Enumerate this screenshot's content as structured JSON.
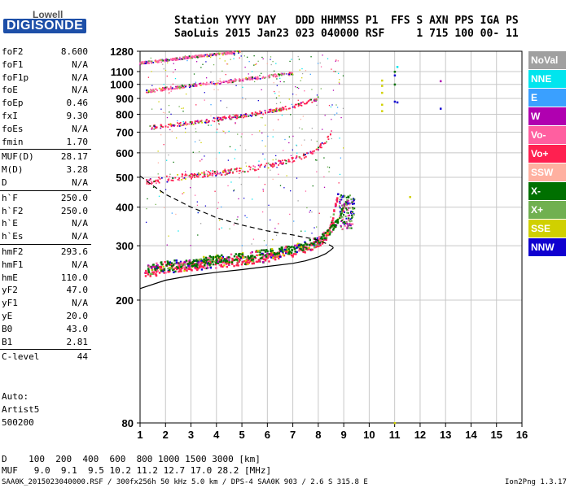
{
  "logo": {
    "top": "Lowell",
    "bottom": "DIGISONDE"
  },
  "header": {
    "line1": "Station YYYY DAY   DDD HHMMSS P1  FFS S AXN PPS IGA PS",
    "line2": "SaoLuis 2015 Jan23 023 040000 RSF     1 715 100 00- 11"
  },
  "params": [
    {
      "name": "foF2",
      "value": "8.600"
    },
    {
      "name": "foF1",
      "value": "N/A"
    },
    {
      "name": "foF1p",
      "value": "N/A"
    },
    {
      "name": "foE",
      "value": "N/A"
    },
    {
      "name": "foEp",
      "value": "0.46"
    },
    {
      "name": "fxI",
      "value": "9.30"
    },
    {
      "name": "foEs",
      "value": "N/A"
    },
    {
      "name": "fmin",
      "value": "1.70"
    },
    {
      "name": "MUF(D)",
      "value": "28.17",
      "sep": true
    },
    {
      "name": "M(D)",
      "value": "3.28"
    },
    {
      "name": "D",
      "value": "N/A"
    },
    {
      "name": "h`F",
      "value": "250.0",
      "sep": true
    },
    {
      "name": "h`F2",
      "value": "250.0"
    },
    {
      "name": "h`E",
      "value": "N/A"
    },
    {
      "name": "h`Es",
      "value": "N/A"
    },
    {
      "name": "hmF2",
      "value": "293.6",
      "sep": true
    },
    {
      "name": "hmF1",
      "value": "N/A"
    },
    {
      "name": "hmE",
      "value": "110.0"
    },
    {
      "name": "yF2",
      "value": "47.0"
    },
    {
      "name": "yF1",
      "value": "N/A"
    },
    {
      "name": "yE",
      "value": "20.0"
    },
    {
      "name": "B0",
      "value": "43.0"
    },
    {
      "name": "B1",
      "value": "2.81"
    },
    {
      "name": "C-level",
      "value": "44",
      "sep": true
    }
  ],
  "auto": {
    "label": "Auto:",
    "artist": "Artist5",
    "version": "500200"
  },
  "bottom": {
    "line1": "D    100  200  400  600  800 1000 1500 3000 [km]",
    "line2": "MUF   9.0  9.1  9.5 10.2 11.2 12.7 17.0 28.2 [MHz]"
  },
  "footer": {
    "left": "SAA0K_2015023040000.RSF / 300fx256h 50 kHz 5.0 km / DPS-4 SAA0K 903 / 2.6 S 315.8 E",
    "right": "Ion2Png 1.3.17"
  },
  "legend": [
    {
      "label": "NoVal",
      "color": "#a0a0a0"
    },
    {
      "label": "NNE",
      "color": "#00e5ee"
    },
    {
      "label": "E",
      "color": "#3aa0ff"
    },
    {
      "label": "W",
      "color": "#b000b0"
    },
    {
      "label": "Vo-",
      "color": "#ff5fa0"
    },
    {
      "label": "Vo+",
      "color": "#ff2050"
    },
    {
      "label": "SSW",
      "color": "#ffb0a0"
    },
    {
      "label": "X-",
      "color": "#007000"
    },
    {
      "label": "X+",
      "color": "#70b050"
    },
    {
      "label": "SSE",
      "color": "#d0d000"
    },
    {
      "label": "NNW",
      "color": "#1000d0"
    }
  ],
  "chart_data": {
    "type": "scatter",
    "xlabel": "",
    "ylabel": "",
    "xlim": [
      1,
      16
    ],
    "ylim": [
      80,
      1280
    ],
    "y_scale": "log",
    "x_ticks": [
      1,
      2,
      3,
      4,
      5,
      6,
      7,
      8,
      9,
      10,
      11,
      12,
      13,
      14,
      15,
      16
    ],
    "y_ticks": [
      80,
      200,
      300,
      400,
      500,
      600,
      700,
      800,
      900,
      1000,
      1100,
      1280
    ],
    "grid": true,
    "traces": [
      {
        "name": "O-trace F2",
        "color": "#ff2050",
        "x": [
          1.2,
          2,
          3,
          4,
          5,
          6,
          7,
          7.5,
          8,
          8.3,
          8.5,
          8.6,
          8.7,
          8.8
        ],
        "y": [
          245,
          252,
          258,
          263,
          268,
          275,
          285,
          293,
          305,
          320,
          345,
          375,
          410,
          440
        ]
      },
      {
        "name": "X-trace F2",
        "color": "#007000",
        "x": [
          1.3,
          2,
          3,
          4,
          5,
          6,
          7,
          7.5,
          8,
          8.4,
          8.7,
          8.9,
          9.1,
          9.2
        ],
        "y": [
          250,
          258,
          265,
          270,
          275,
          283,
          293,
          300,
          312,
          330,
          355,
          385,
          410,
          430
        ]
      },
      {
        "name": "2-hop O",
        "color": "#ff2050",
        "x": [
          1.2,
          2,
          3,
          4,
          5,
          6,
          7,
          7.5,
          8,
          8.3,
          8.5,
          8.6
        ],
        "y": [
          480,
          493,
          505,
          515,
          528,
          545,
          570,
          590,
          620,
          655,
          690,
          720
        ]
      },
      {
        "name": "3-hop O",
        "color": "#ff2050",
        "x": [
          1.2,
          2,
          3,
          4,
          5,
          6,
          7,
          7.5,
          8
        ],
        "y": [
          718,
          735,
          750,
          770,
          790,
          815,
          845,
          870,
          900
        ]
      },
      {
        "name": "4-hop",
        "color": "#ff5fa0",
        "x": [
          1.2,
          2,
          3,
          4,
          5,
          6,
          7
        ],
        "y": [
          945,
          968,
          990,
          1010,
          1035,
          1060,
          1085
        ]
      },
      {
        "name": "5-hop",
        "color": "#ff5fa0",
        "x": [
          1,
          2,
          3,
          4,
          5
        ],
        "y": [
          1170,
          1195,
          1225,
          1250,
          1275
        ]
      }
    ],
    "profile": {
      "x": [
        1,
        2,
        3,
        4,
        5,
        6,
        7,
        7.5,
        8,
        8.3,
        8.5,
        8.6
      ],
      "y": [
        218,
        232,
        240,
        246,
        251,
        257,
        263,
        268,
        276,
        283,
        291,
        296
      ]
    },
    "dashed_profile": {
      "x": [
        1,
        1.5,
        2,
        2.5,
        3,
        3.5,
        4,
        5,
        6,
        7,
        8,
        8.5,
        8.6
      ],
      "y": [
        505,
        470,
        440,
        420,
        400,
        385,
        370,
        350,
        335,
        325,
        313,
        300,
        296
      ]
    },
    "isolated_points": [
      {
        "x": 10.5,
        "y": 1030,
        "color": "#d0d000"
      },
      {
        "x": 10.5,
        "y": 990,
        "color": "#d0d000"
      },
      {
        "x": 10.5,
        "y": 940,
        "color": "#d0d000"
      },
      {
        "x": 10.5,
        "y": 860,
        "color": "#d0d000"
      },
      {
        "x": 10.5,
        "y": 820,
        "color": "#d0d000"
      },
      {
        "x": 11,
        "y": 1100,
        "color": "#007000"
      },
      {
        "x": 11,
        "y": 1070,
        "color": "#1000d0"
      },
      {
        "x": 11,
        "y": 1000,
        "color": "#007000"
      },
      {
        "x": 11,
        "y": 880,
        "color": "#1000d0"
      },
      {
        "x": 11.1,
        "y": 875,
        "color": "#1000d0"
      },
      {
        "x": 11.1,
        "y": 1140,
        "color": "#00e5ee"
      },
      {
        "x": 12.8,
        "y": 1025,
        "color": "#b000b0"
      },
      {
        "x": 12.8,
        "y": 835,
        "color": "#1000d0"
      },
      {
        "x": 11.6,
        "y": 432,
        "color": "#d0d000"
      },
      {
        "x": 11,
        "y": 80,
        "color": "#d0d000"
      }
    ],
    "cusp_cluster": {
      "x": [
        8.8,
        9.4
      ],
      "y": [
        340,
        440
      ]
    }
  }
}
